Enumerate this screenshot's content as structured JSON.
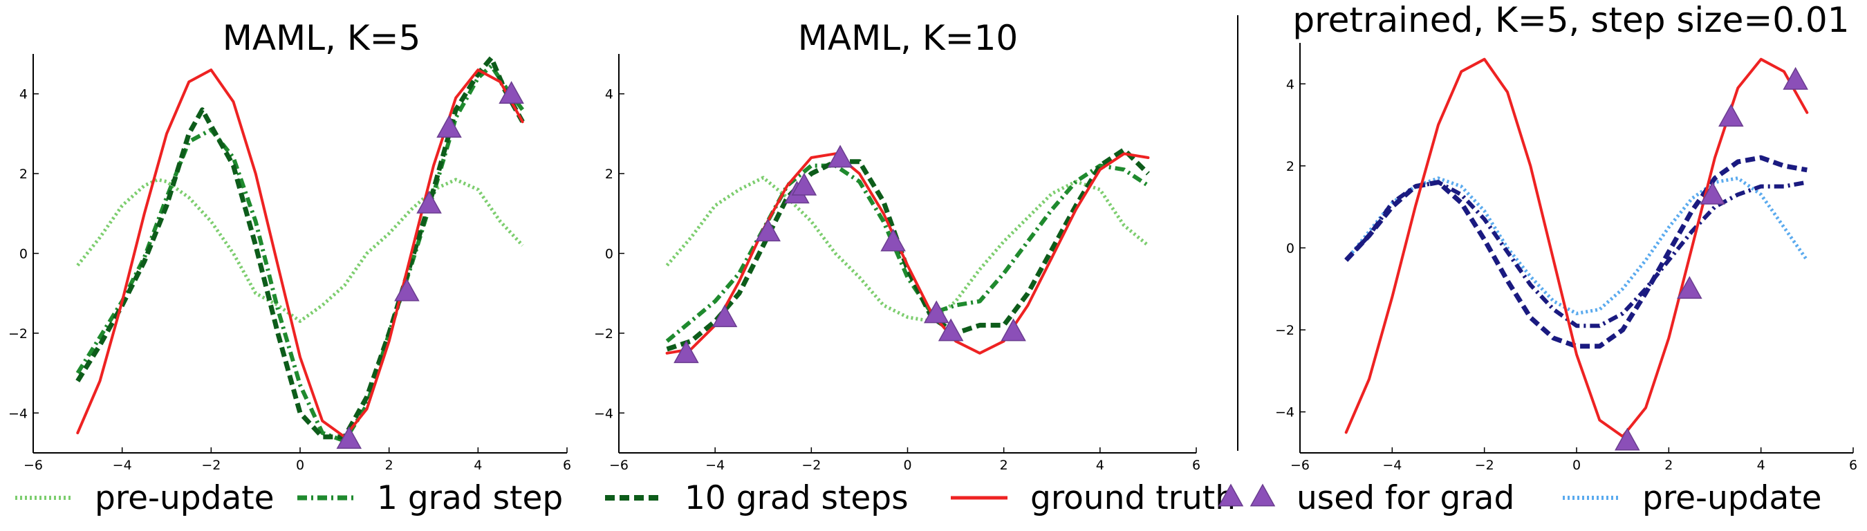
{
  "chart_data": [
    {
      "type": "line",
      "title": "MAML, K=5",
      "xlim": [
        -6,
        6
      ],
      "ylim": [
        -5,
        5
      ],
      "xticks": [
        -6,
        -4,
        -2,
        0,
        2,
        4,
        6
      ],
      "yticks": [
        -4,
        -2,
        0,
        2,
        4
      ],
      "grid": false,
      "series": [
        {
          "name": "pre-update",
          "style": "dotted",
          "color": "#7ccd6e",
          "x": [
            -5,
            -4.5,
            -4,
            -3.5,
            -3.2,
            -3,
            -2.5,
            -2,
            -1.5,
            -1,
            -0.5,
            0,
            0.5,
            1,
            1.5,
            2,
            2.5,
            3,
            3.5,
            4,
            4.5,
            5
          ],
          "y": [
            -0.3,
            0.4,
            1.2,
            1.7,
            1.85,
            1.8,
            1.4,
            0.8,
            0.0,
            -1.0,
            -1.3,
            -1.7,
            -1.3,
            -0.8,
            0.0,
            0.5,
            1.1,
            1.6,
            1.85,
            1.6,
            0.8,
            0.2
          ]
        },
        {
          "name": "1 grad step",
          "style": "dashdot",
          "color": "#1f8a2e",
          "x": [
            -5,
            -4.5,
            -4,
            -3.5,
            -3,
            -2.5,
            -2,
            -1.5,
            -1,
            -0.5,
            0,
            0.5,
            1,
            1.5,
            2,
            2.5,
            3,
            3.5,
            4,
            4.3,
            4.6,
            5
          ],
          "y": [
            -3.0,
            -2.1,
            -1.2,
            -0.1,
            1.4,
            2.8,
            3.1,
            2.4,
            0.8,
            -1.4,
            -3.3,
            -4.5,
            -4.7,
            -3.8,
            -2.0,
            -0.3,
            1.5,
            3.4,
            4.4,
            4.7,
            4.2,
            3.6
          ]
        },
        {
          "name": "10 grad steps",
          "style": "dashed",
          "color": "#0d5c1a",
          "x": [
            -5,
            -4.5,
            -4,
            -3.5,
            -3,
            -2.5,
            -2.2,
            -2,
            -1.5,
            -1,
            -0.5,
            0,
            0.5,
            1,
            1.5,
            2,
            2.5,
            3,
            3.5,
            4,
            4.3,
            4.6,
            5
          ],
          "y": [
            -3.2,
            -2.3,
            -1.3,
            -0.2,
            1.2,
            3.0,
            3.6,
            3.2,
            2.2,
            0.2,
            -2.0,
            -4.0,
            -4.6,
            -4.6,
            -3.6,
            -2.0,
            -0.2,
            1.6,
            3.6,
            4.5,
            4.9,
            4.1,
            3.3
          ]
        },
        {
          "name": "ground truth",
          "style": "solid",
          "color": "#ee2222",
          "x": [
            -5,
            -4.5,
            -4,
            -3.5,
            -3,
            -2.5,
            -2,
            -1.5,
            -1,
            -0.5,
            0,
            0.5,
            1,
            1.5,
            2,
            2.5,
            3,
            3.5,
            4,
            4.5,
            5
          ],
          "y": [
            -4.5,
            -3.2,
            -1.2,
            1.0,
            3.0,
            4.3,
            4.6,
            3.8,
            2.0,
            -0.3,
            -2.6,
            -4.2,
            -4.6,
            -3.9,
            -2.2,
            0.0,
            2.2,
            3.9,
            4.6,
            4.3,
            3.3
          ]
        },
        {
          "name": "used for grad",
          "style": "markers",
          "color": "#8b4fb8",
          "x": [
            1.1,
            2.4,
            2.9,
            3.35,
            4.75
          ],
          "y": [
            -4.65,
            -0.95,
            1.25,
            3.15,
            4.0
          ]
        }
      ]
    },
    {
      "type": "line",
      "title": "MAML, K=10",
      "xlim": [
        -6,
        6
      ],
      "ylim": [
        -5,
        5
      ],
      "xticks": [
        -6,
        -4,
        -2,
        0,
        2,
        4,
        6
      ],
      "yticks": [
        -4,
        -2,
        0,
        2,
        4
      ],
      "grid": false,
      "series": [
        {
          "name": "pre-update",
          "style": "dotted",
          "color": "#7ccd6e",
          "x": [
            -5,
            -4.5,
            -4,
            -3.5,
            -3,
            -2.5,
            -2,
            -1.5,
            -1,
            -0.5,
            0,
            0.5,
            1,
            1.5,
            2,
            2.5,
            3,
            3.5,
            4,
            4.5,
            5
          ],
          "y": [
            -0.3,
            0.4,
            1.2,
            1.6,
            1.9,
            1.4,
            0.8,
            0.0,
            -0.6,
            -1.3,
            -1.6,
            -1.7,
            -1.2,
            -0.4,
            0.3,
            0.9,
            1.5,
            1.8,
            1.6,
            0.7,
            0.2
          ]
        },
        {
          "name": "1 grad step",
          "style": "dashdot",
          "color": "#1f8a2e",
          "x": [
            -5,
            -4.5,
            -4,
            -3.5,
            -3,
            -2.5,
            -2,
            -1.5,
            -1,
            -0.5,
            0,
            0.5,
            1,
            1.5,
            2,
            2.5,
            3,
            3.5,
            4,
            4.5,
            5
          ],
          "y": [
            -2.2,
            -1.7,
            -1.2,
            -0.5,
            0.6,
            1.7,
            2.2,
            2.2,
            1.8,
            0.8,
            -0.6,
            -1.5,
            -1.3,
            -1.2,
            -0.5,
            0.3,
            1.1,
            1.8,
            2.2,
            2.1,
            1.7
          ]
        },
        {
          "name": "10 grad steps",
          "style": "dashed",
          "color": "#0d5c1a",
          "x": [
            -5,
            -4.5,
            -4,
            -3.5,
            -3,
            -2.5,
            -2,
            -1.5,
            -1,
            -0.5,
            0,
            0.5,
            1,
            1.5,
            2,
            2.5,
            3,
            3.5,
            4,
            4.5,
            5
          ],
          "y": [
            -2.4,
            -2.2,
            -1.7,
            -1.0,
            0.2,
            1.4,
            2.0,
            2.3,
            2.3,
            1.3,
            -0.4,
            -1.6,
            -2.0,
            -1.8,
            -1.8,
            -1.0,
            0.1,
            1.2,
            2.2,
            2.6,
            2.0
          ]
        },
        {
          "name": "ground truth",
          "style": "solid",
          "color": "#ee2222",
          "x": [
            -5,
            -4.5,
            -4,
            -3.5,
            -3,
            -2.5,
            -2,
            -1.5,
            -1,
            -0.5,
            0,
            0.5,
            1,
            1.5,
            2,
            2.5,
            3,
            3.5,
            4,
            4.5,
            5
          ],
          "y": [
            -2.5,
            -2.4,
            -1.8,
            -0.7,
            0.6,
            1.7,
            2.4,
            2.5,
            2.0,
            1.0,
            -0.3,
            -1.5,
            -2.2,
            -2.5,
            -2.2,
            -1.3,
            -0.1,
            1.1,
            2.1,
            2.5,
            2.4
          ]
        },
        {
          "name": "used for grad",
          "style": "markers",
          "color": "#8b4fb8",
          "x": [
            -4.6,
            -3.8,
            -2.9,
            -2.3,
            -2.15,
            -1.4,
            -0.3,
            0.6,
            0.9,
            2.2
          ],
          "y": [
            -2.5,
            -1.6,
            0.55,
            1.5,
            1.7,
            2.4,
            0.3,
            -1.5,
            -1.95,
            -1.95
          ]
        }
      ]
    },
    {
      "type": "line",
      "title": "pretrained, K=5, step size=0.01",
      "xlim": [
        -6,
        6
      ],
      "ylim": [
        -5,
        5
      ],
      "xticks": [
        -6,
        -4,
        -2,
        0,
        2,
        4,
        6
      ],
      "yticks": [
        -4,
        -2,
        0,
        2,
        4
      ],
      "grid": false,
      "series": [
        {
          "name": "pre-update",
          "style": "dotted",
          "color": "#5aaaee",
          "x": [
            -5,
            -4.5,
            -4,
            -3.5,
            -3,
            -2.5,
            -2,
            -1.5,
            -1,
            -0.5,
            0,
            0.5,
            1,
            1.5,
            2,
            2.5,
            3,
            3.5,
            4,
            4.5,
            5
          ],
          "y": [
            -0.3,
            0.4,
            1.1,
            1.5,
            1.7,
            1.5,
            0.9,
            0.0,
            -0.7,
            -1.3,
            -1.6,
            -1.5,
            -1.0,
            -0.3,
            0.5,
            1.2,
            1.6,
            1.7,
            1.3,
            0.5,
            -0.3
          ]
        },
        {
          "name": "1 grad step",
          "style": "dashdot",
          "color": "#1a1a80",
          "x": [
            -5,
            -4.5,
            -4,
            -3.5,
            -3,
            -2.5,
            -2,
            -1.5,
            -1,
            -0.5,
            0,
            0.5,
            1,
            1.5,
            2,
            2.5,
            3,
            3.5,
            4,
            4.5,
            5
          ],
          "y": [
            -0.3,
            0.3,
            1.1,
            1.5,
            1.6,
            1.3,
            0.7,
            -0.1,
            -0.9,
            -1.5,
            -1.9,
            -1.9,
            -1.6,
            -1.0,
            -0.3,
            0.4,
            1.0,
            1.3,
            1.5,
            1.5,
            1.6
          ]
        },
        {
          "name": "10 grad steps",
          "style": "dashed",
          "color": "#1a1a80",
          "x": [
            -5,
            -4.5,
            -4,
            -3.5,
            -3,
            -2.5,
            -2,
            -1.5,
            -1,
            -0.5,
            0,
            0.5,
            1,
            1.5,
            2,
            2.5,
            3,
            3.5,
            4,
            4.5,
            5
          ],
          "y": [
            -0.3,
            0.3,
            1.0,
            1.5,
            1.6,
            1.1,
            0.2,
            -0.8,
            -1.7,
            -2.2,
            -2.4,
            -2.4,
            -2.0,
            -1.1,
            -0.1,
            0.9,
            1.7,
            2.1,
            2.2,
            2.0,
            1.9
          ]
        },
        {
          "name": "ground truth",
          "style": "solid",
          "color": "#ee2222",
          "x": [
            -5,
            -4.5,
            -4,
            -3.5,
            -3,
            -2.5,
            -2,
            -1.5,
            -1,
            -0.5,
            0,
            0.5,
            1,
            1.5,
            2,
            2.5,
            3,
            3.5,
            4,
            4.5,
            5
          ],
          "y": [
            -4.5,
            -3.2,
            -1.2,
            1.0,
            3.0,
            4.3,
            4.6,
            3.8,
            2.0,
            -0.3,
            -2.6,
            -4.2,
            -4.6,
            -3.9,
            -2.2,
            0.0,
            2.2,
            3.9,
            4.6,
            4.3,
            3.3
          ]
        },
        {
          "name": "used for grad",
          "style": "markers",
          "color": "#8b4fb8",
          "x": [
            1.1,
            2.45,
            2.95,
            3.35,
            4.75
          ],
          "y": [
            -4.7,
            -1.0,
            1.3,
            3.2,
            4.1
          ]
        }
      ]
    }
  ],
  "legend": {
    "position": "bottom",
    "items": [
      {
        "label": "pre-update",
        "style": "dotted",
        "color": "#7ccd6e"
      },
      {
        "label": "1 grad step",
        "style": "dashdot",
        "color": "#1f8a2e"
      },
      {
        "label": "10 grad steps",
        "style": "dashed",
        "color": "#0d5c1a"
      },
      {
        "label": "ground truth",
        "style": "solid",
        "color": "#ee2222"
      },
      {
        "label": "used for grad",
        "style": "markers",
        "color": "#8b4fb8"
      },
      {
        "label": "pre-update",
        "style": "dotted",
        "color": "#5aaaee"
      }
    ]
  }
}
